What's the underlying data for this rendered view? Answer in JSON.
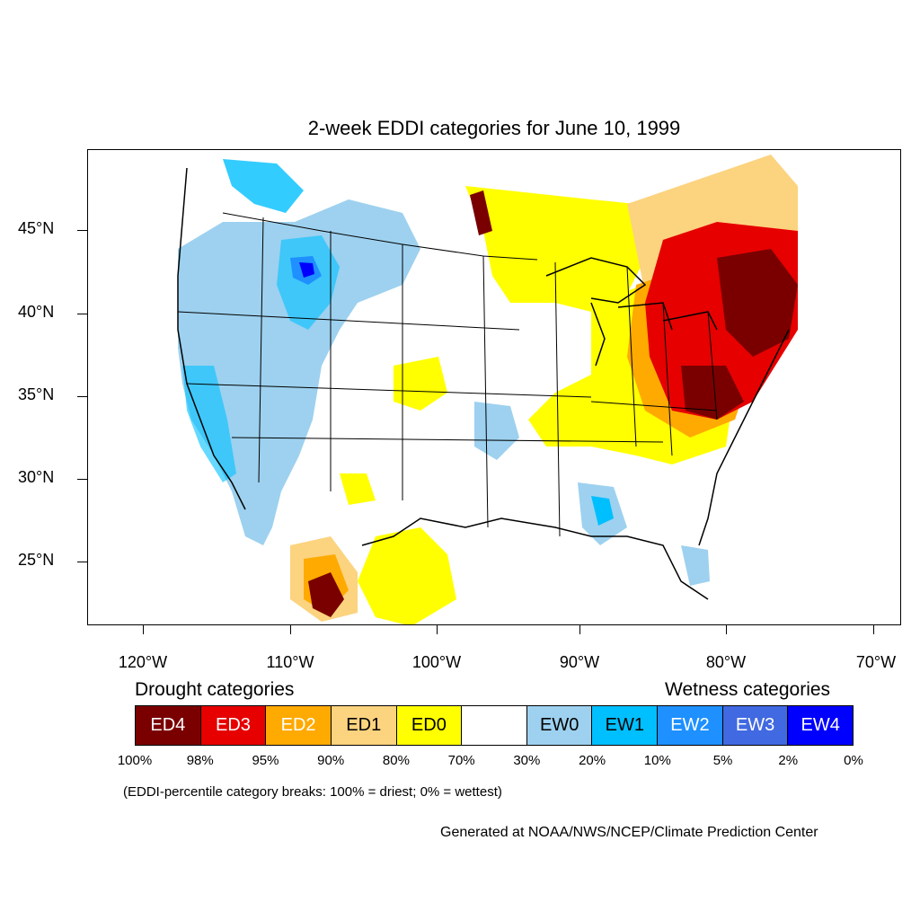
{
  "title": "2-week EDDI categories for June 10, 1999",
  "lat_labels": [
    "45°N",
    "40°N",
    "35°N",
    "30°N",
    "25°N"
  ],
  "lon_labels": [
    "120°W",
    "110°W",
    "100°W",
    "90°W",
    "80°W",
    "70°W"
  ],
  "legend": {
    "drought_heading": "Drought categories",
    "wetness_heading": "Wetness categories",
    "categories": [
      {
        "label": "ED4",
        "color": "#7a0000",
        "text_color": "#ffffff"
      },
      {
        "label": "ED3",
        "color": "#e60000",
        "text_color": "#ffffff"
      },
      {
        "label": "ED2",
        "color": "#ffaa00",
        "text_color": "#ffffff"
      },
      {
        "label": "ED1",
        "color": "#fcd37f",
        "text_color": "#000000"
      },
      {
        "label": "ED0",
        "color": "#ffff00",
        "text_color": "#000000"
      },
      {
        "label": "",
        "color": "#ffffff",
        "text_color": "#000000"
      },
      {
        "label": "EW0",
        "color": "#9dd1ef",
        "text_color": "#000000"
      },
      {
        "label": "EW1",
        "color": "#00bfff",
        "text_color": "#000000"
      },
      {
        "label": "EW2",
        "color": "#1e90ff",
        "text_color": "#ffffff"
      },
      {
        "label": "EW3",
        "color": "#4169e1",
        "text_color": "#ffffff"
      },
      {
        "label": "EW4",
        "color": "#0000ff",
        "text_color": "#ffffff"
      }
    ],
    "breaks": [
      "100%",
      "98%",
      "95%",
      "90%",
      "80%",
      "70%",
      "30%",
      "20%",
      "10%",
      "5%",
      "2%",
      "0%"
    ]
  },
  "note": "(EDDI-percentile category breaks: 100% = driest; 0% = wettest)",
  "credit": "Generated at NOAA/NWS/NCEP/Climate Prediction Center"
}
